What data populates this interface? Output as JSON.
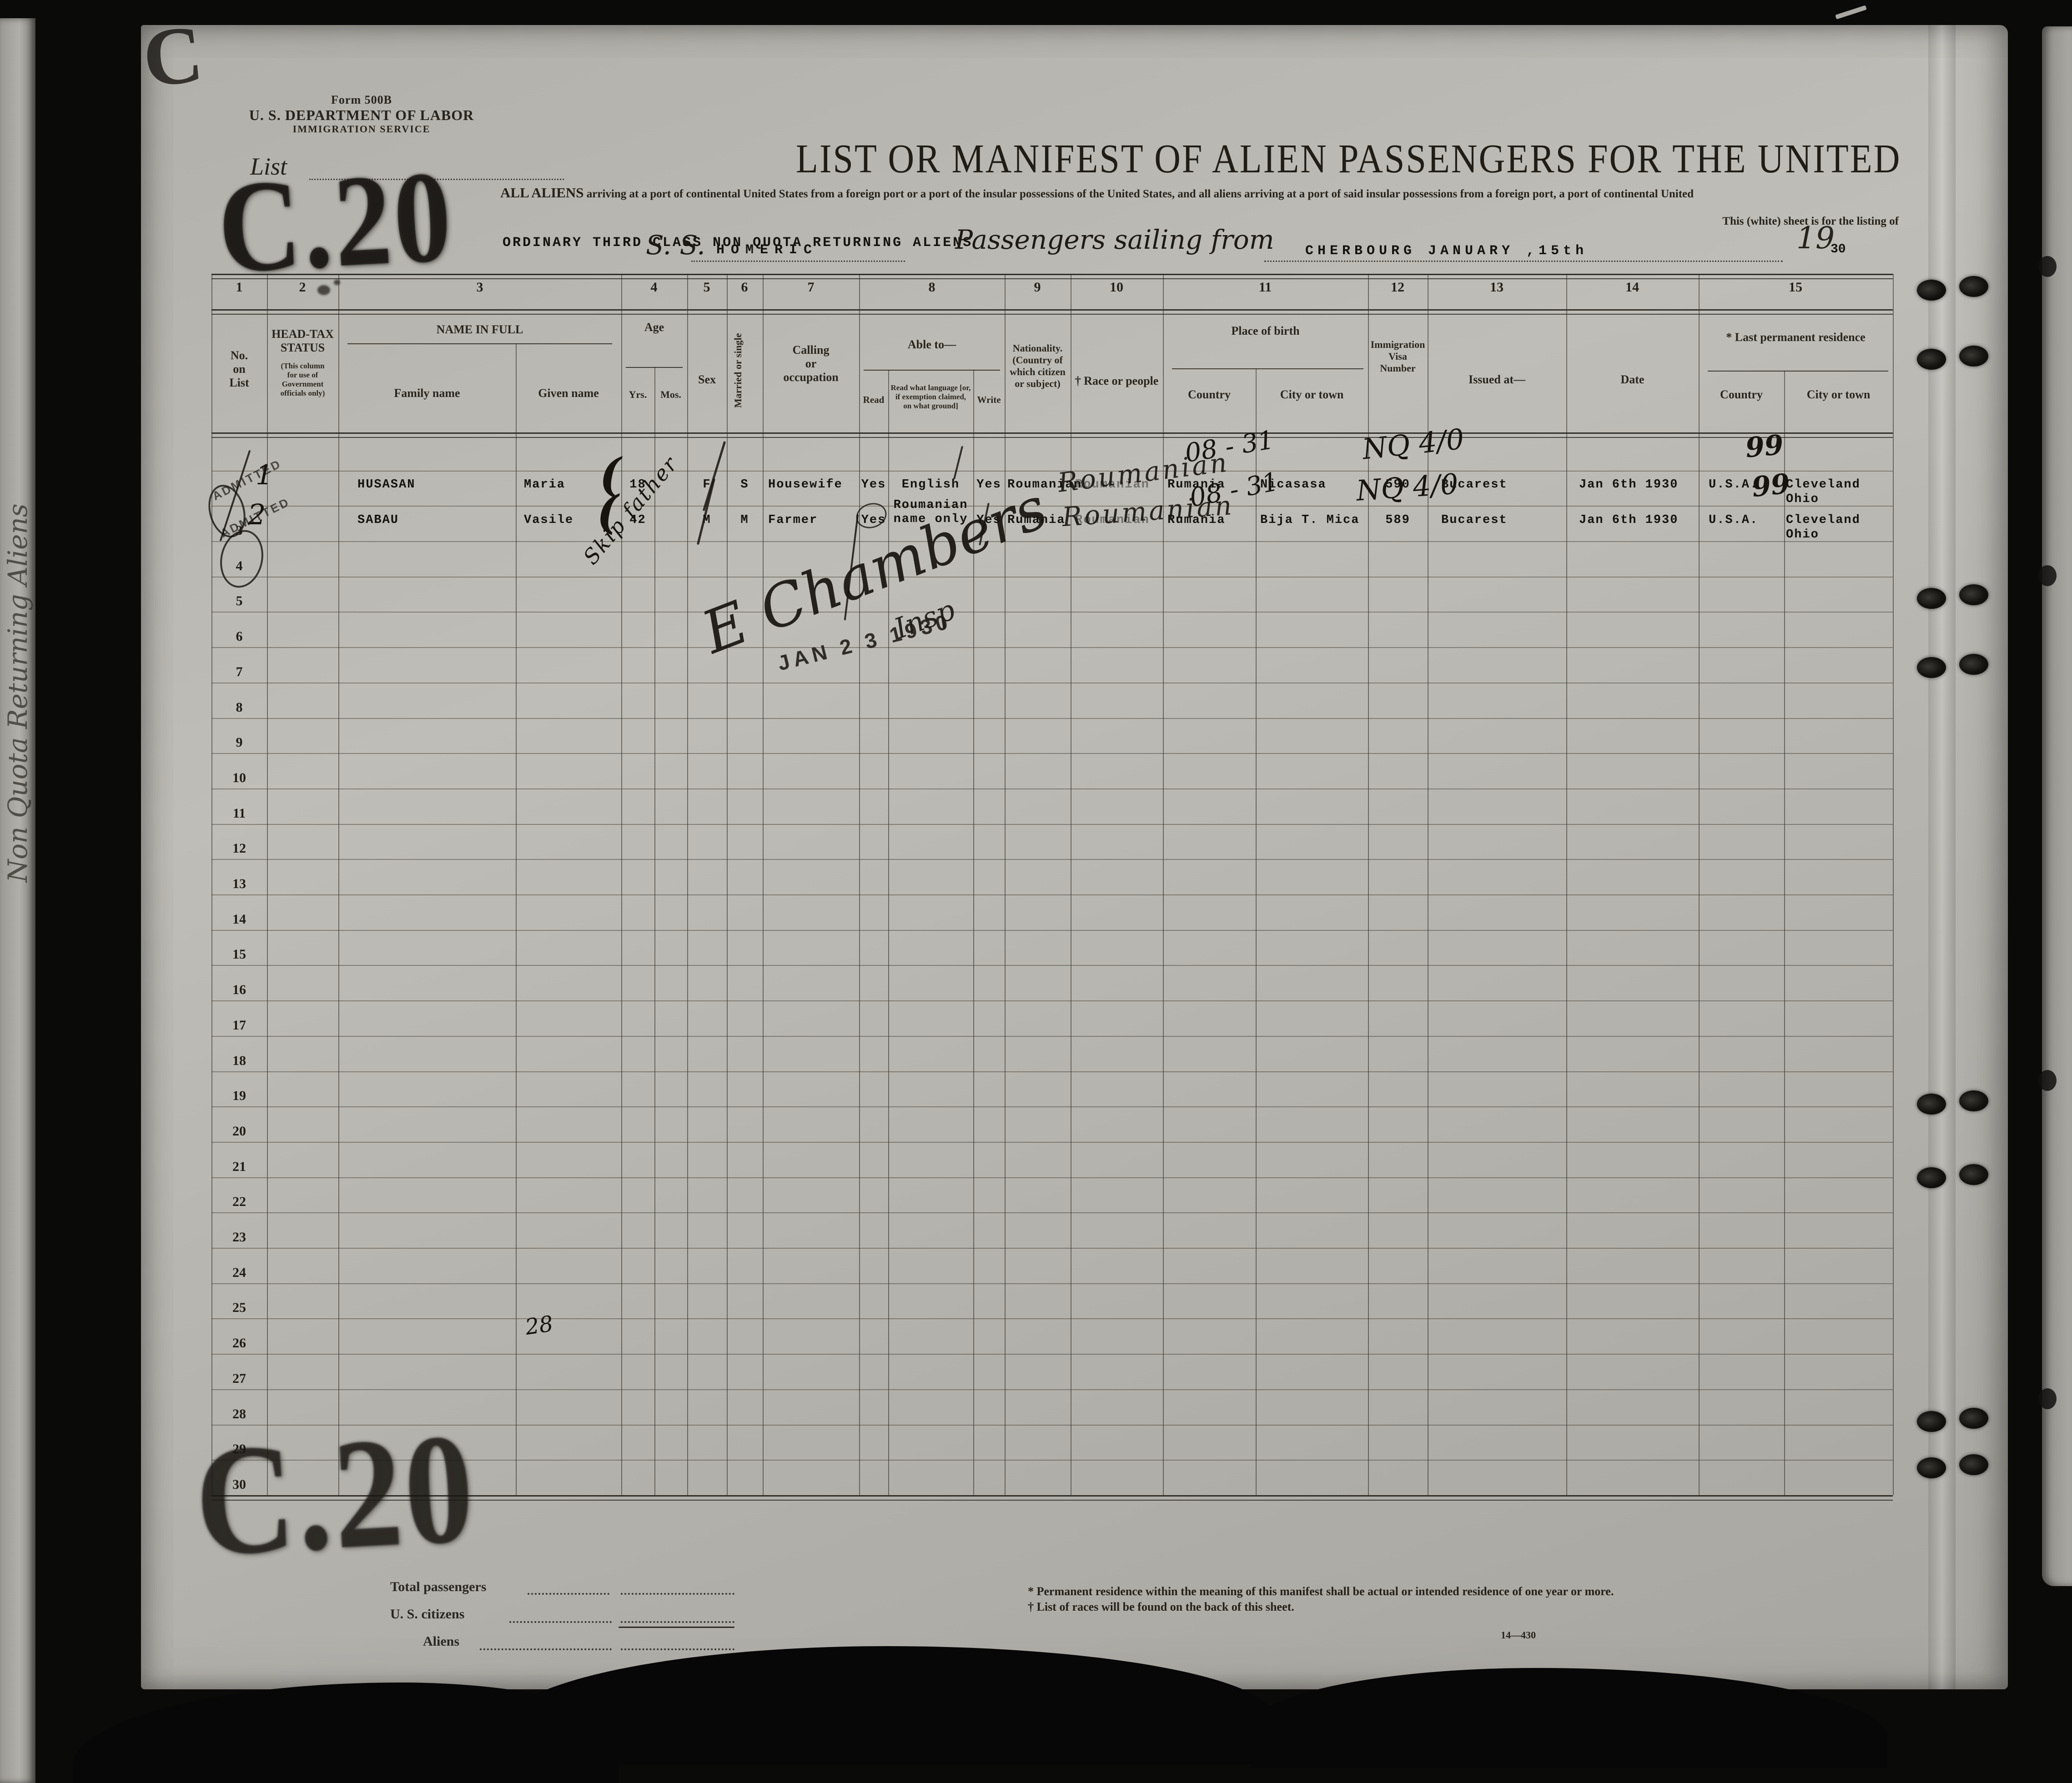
{
  "page": {
    "form_number": "Form 500B",
    "department": "U. S. DEPARTMENT OF LABOR",
    "service": "IMMIGRATION SERVICE",
    "list_label": "List",
    "stamp_top": "C.20",
    "stamp_bottom": "C.20",
    "corner_fragment": "C",
    "title": "LIST OR MANIFEST OF ALIEN PASSENGERS FOR THE UNITED",
    "subtitle_lead": "ALL ALIENS",
    "subtitle_rest": "arriving at a port of continental United States from a foreign port or a port of the insular possessions of the United States, and all aliens arriving at a port of said insular possessions from a foreign port, a port of continental United",
    "subtitle_right": "This (white) sheet is for the listing of",
    "class_line": "ORDINARY THIRD CLASS  NON QUOTA RETURNING ALIENS",
    "ss_label": "S. S.",
    "ship_name": "HOMERIC",
    "sailing_label": "Passengers sailing from",
    "port_and_date": "CHERBOURG JANUARY ,15th",
    "year_script": "19",
    "year_typed": "30"
  },
  "table": {
    "column_numbers": [
      "1",
      "2",
      "3",
      "4",
      "5",
      "6",
      "7",
      "8",
      "9",
      "10",
      "11",
      "12",
      "13",
      "14",
      "15"
    ],
    "row_numbers": [
      "",
      "",
      "3",
      "4",
      "5",
      "6",
      "7",
      "8",
      "9",
      "10",
      "11",
      "12",
      "13",
      "14",
      "15",
      "16",
      "17",
      "18",
      "19",
      "20",
      "21",
      "22",
      "23",
      "24",
      "25",
      "26",
      "27",
      "28",
      "29",
      "30"
    ],
    "headers": {
      "no": "No.\non\nList",
      "headtax_title": "HEAD-TAX\nSTATUS",
      "headtax_sub": "(This column\nfor use of\nGovernment\nofficials only)",
      "name": "NAME IN FULL",
      "family": "Family name",
      "given": "Given name",
      "age": "Age",
      "yrs": "Yrs.",
      "mos": "Mos.",
      "sex": "Sex",
      "married": "Married or single",
      "calling": "Calling\nor\noccupation",
      "able": "Able to—",
      "read": "Read",
      "read_language": "Read what language [or,\nif exemption claimed,\non what ground]",
      "write": "Write",
      "nationality": "Nationality.\n(Country of\nwhich citizen\nor subject)",
      "race": "† Race or people",
      "birth": "Place of birth",
      "birth_country": "Country",
      "birth_city": "City or town",
      "visa": "Immigration\nVisa\nNumber",
      "issued": "Issued at—",
      "date": "Date",
      "residence": "* Last permanent residence",
      "res_country": "Country",
      "res_city": "City or town"
    }
  },
  "passengers": [
    {
      "family": "HUSASAN",
      "given": "Maria",
      "yrs": "18",
      "sex": "F",
      "marital": "S",
      "occupation": "Housewife",
      "read": "Yes",
      "read_language": "English",
      "write": "Yes",
      "nationality": "Roumanian",
      "race": "Roumanian",
      "birth_country": "Rumania",
      "birth_city": "Nicasasa",
      "visa": "590",
      "issued_at": "Bucarest",
      "date": "Jan 6th 1930",
      "res_country": "U.S.A.",
      "res_city": "Cleveland Ohio"
    },
    {
      "family": "SABAU",
      "given": "Vasile",
      "yrs": "42",
      "sex": "M",
      "marital": "M",
      "occupation": "Farmer",
      "read": "Yes",
      "read_language": "Roumanian\nname only",
      "write": "Yes",
      "nationality": "Rumania",
      "race": "Roumanian",
      "birth_country": "Rumania",
      "birth_city": "Bija T. Mica",
      "visa": "589",
      "issued_at": "Bucarest",
      "date": "Jan 6th 1930",
      "res_country": "U.S.A.",
      "res_city": "Cleveland Ohio"
    }
  ],
  "annotations": {
    "admitted1": "ADMITTED",
    "admitted2": "ADMITTED",
    "row1_no": "1",
    "row2_no": "2",
    "paren1": "(",
    "paren2": "(",
    "skip_note": "Skip father",
    "race_scrawl1": "Roumanian",
    "race_scrawl2": "Roumanian",
    "date_note1": "08 - 31",
    "date_note2": "08 - 31",
    "visa_scrawl1": "NQ 4/0",
    "visa_scrawl2": "NQ 4/0",
    "us_mark1": "99",
    "us_mark2": "99",
    "signature": "E Chambers",
    "signature_title": "Insp",
    "date_stamp": "JAN 2 3 1930",
    "row26_note": "28"
  },
  "totals": {
    "total_label": "Total passengers",
    "us_label": "U. S. citizens",
    "aliens_label": "Aliens"
  },
  "footnotes": {
    "star": "* Permanent residence within the meaning of this manifest shall be actual or intended residence of one year or more.",
    "dagger": "† List of races will be found on the back of this sheet.",
    "code": "14—430"
  },
  "left_page": {
    "note": "Non Quota Returning Aliens"
  }
}
